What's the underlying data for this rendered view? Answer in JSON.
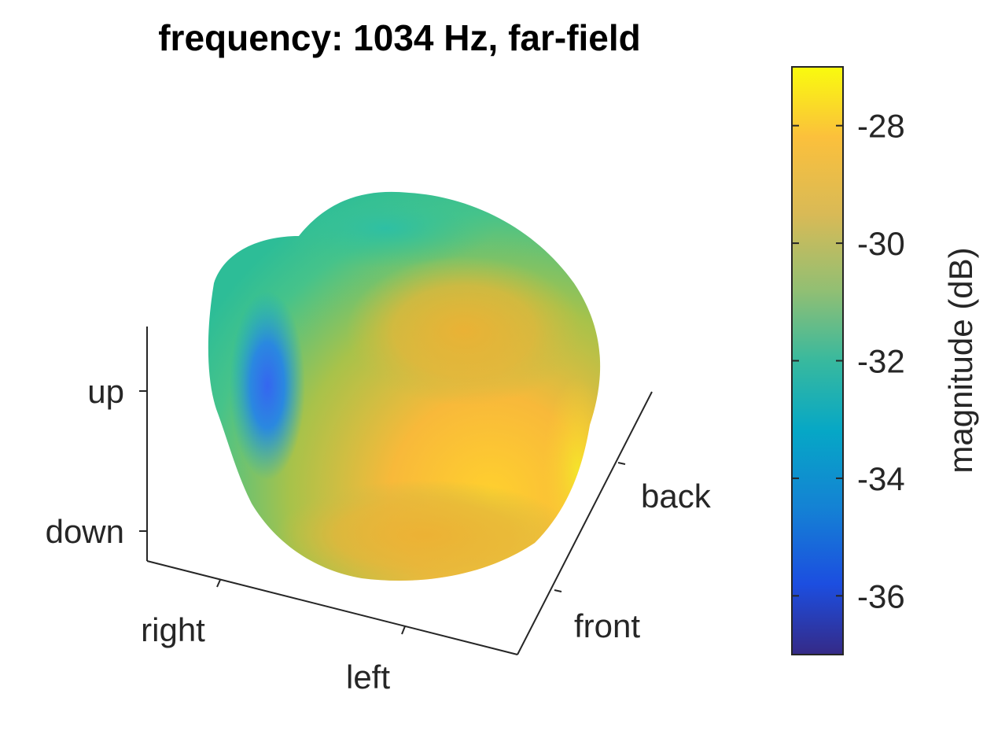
{
  "chart_data": {
    "type": "3d-surface",
    "title": "frequency: 1034 Hz, far-field",
    "axes": {
      "x": {
        "tick_labels": [
          "right",
          "left"
        ]
      },
      "y": {
        "tick_labels": [
          "front",
          "back"
        ]
      },
      "z": {
        "tick_labels": [
          "down",
          "up"
        ]
      }
    },
    "colorbar": {
      "label": "magnitude (dB)",
      "range": [
        -37,
        -27
      ],
      "ticks": [
        -36,
        -34,
        -32,
        -30,
        -28
      ],
      "tick_labels": [
        "-36",
        "-34",
        "-32",
        "-30",
        "-28"
      ],
      "colormap": "parula"
    },
    "surface_color_regions": [
      {
        "region": "left lobe",
        "value": -34.5
      },
      {
        "region": "top ridge",
        "value": -31.5
      },
      {
        "region": "center band",
        "value": -30.5
      },
      {
        "region": "upper right",
        "value": -28.5
      },
      {
        "region": "bottom",
        "value": -28.0
      },
      {
        "region": "right edge",
        "value": -27.5
      }
    ],
    "grid": false
  }
}
